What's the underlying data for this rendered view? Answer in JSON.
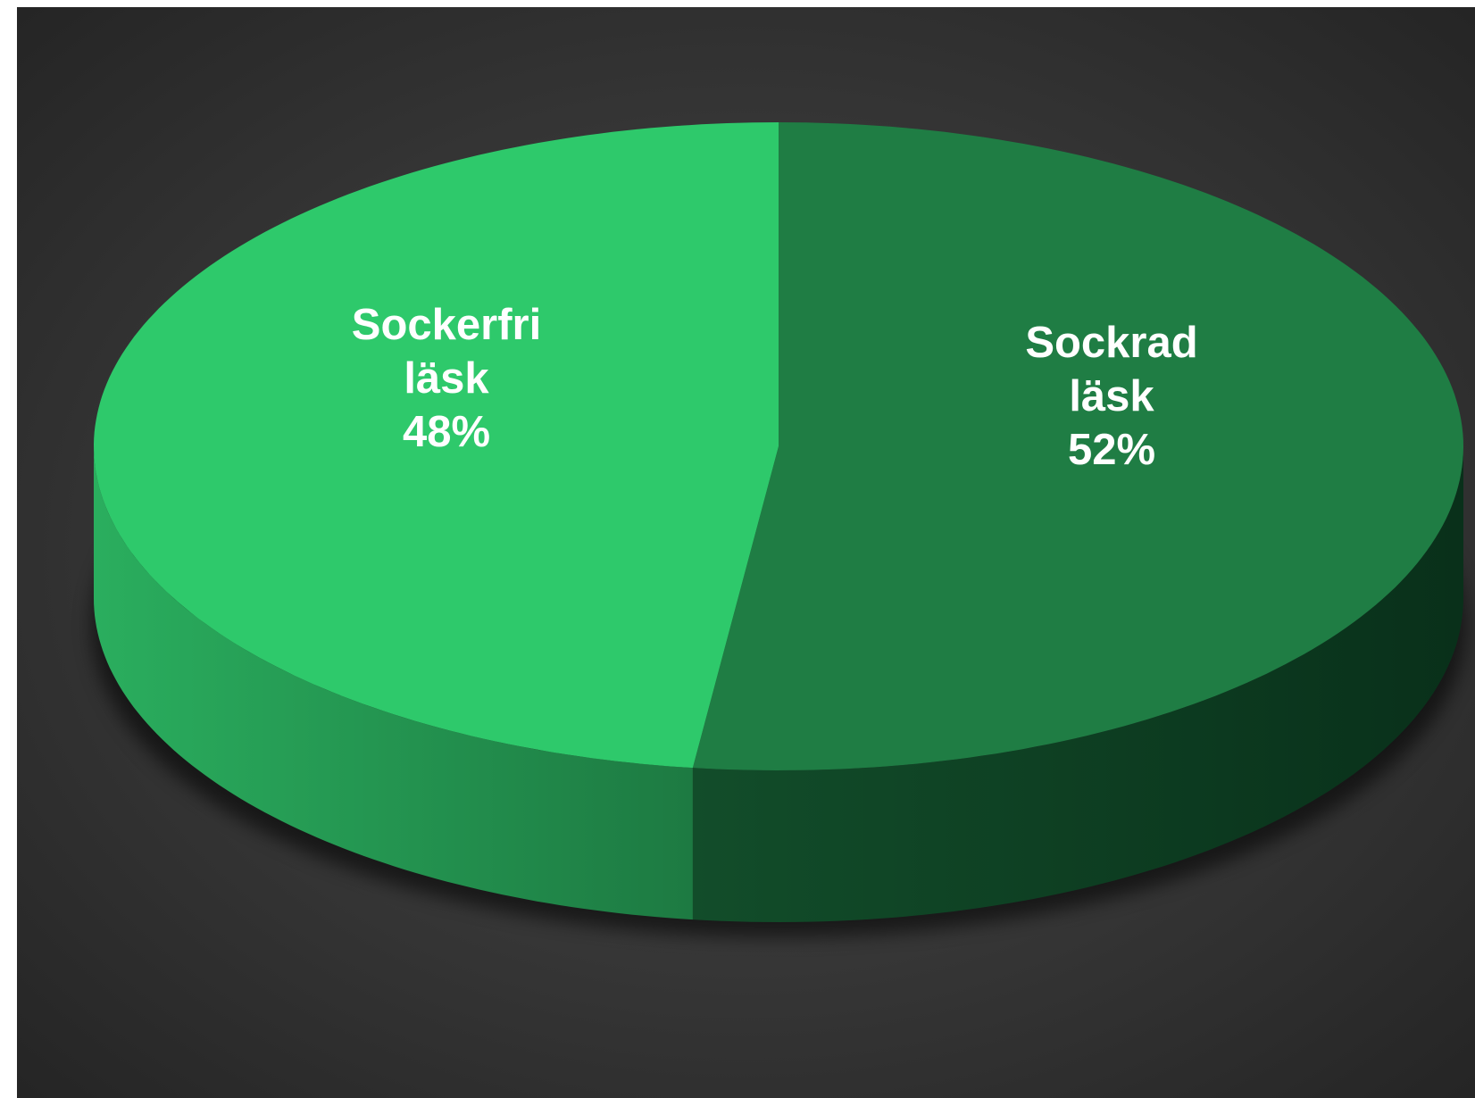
{
  "chart_data": {
    "type": "pie",
    "style": "3d",
    "categories": [
      "Sockrad läsk",
      "Sockerfri läsk"
    ],
    "values": [
      52,
      48
    ],
    "labels": [
      {
        "category": "Sockrad läsk",
        "lines": [
          "Sockrad",
          "läsk",
          "52%"
        ]
      },
      {
        "category": "Sockerfri läsk",
        "lines": [
          "Sockerfri",
          "läsk",
          "48%"
        ]
      }
    ],
    "colors": {
      "Sockrad läsk": "#1f7d44",
      "Sockerfri läsk": "#2ec96b"
    },
    "side_colors": {
      "Sockrad läsk": "#0f4424",
      "Sockerfri läsk": "#239b52"
    },
    "background": "#3a3a3a",
    "label_color": "#ffffff",
    "legend": "none"
  }
}
